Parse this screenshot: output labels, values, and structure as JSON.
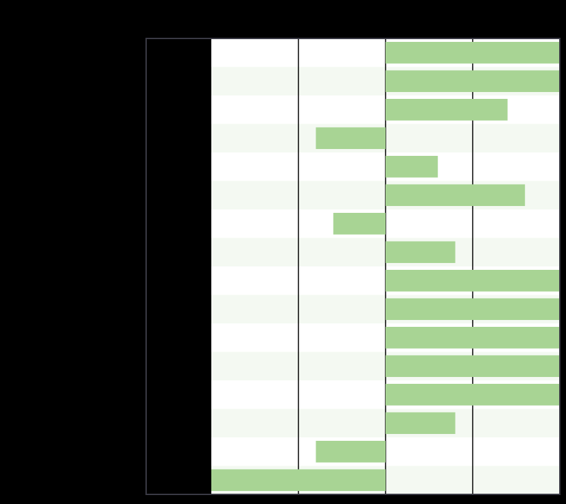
{
  "chart_data": {
    "type": "bar",
    "orientation": "horizontal",
    "title": "",
    "xlabel": "",
    "ylabel": "",
    "xlim": [
      -2,
      2
    ],
    "grid": true,
    "row_banding": true,
    "colors": {
      "bar": "#a8d494",
      "band": "#f4f9f2",
      "background": "#ffffff",
      "grid": "#000000",
      "frame": "#3a3a44",
      "label_panel": "#000000"
    },
    "values": [
      2.0,
      2.0,
      1.4,
      -0.8,
      0.6,
      1.6,
      -0.6,
      0.8,
      2.0,
      2.0,
      2.0,
      2.0,
      2.0,
      0.8,
      -0.8,
      -2.0
    ]
  }
}
